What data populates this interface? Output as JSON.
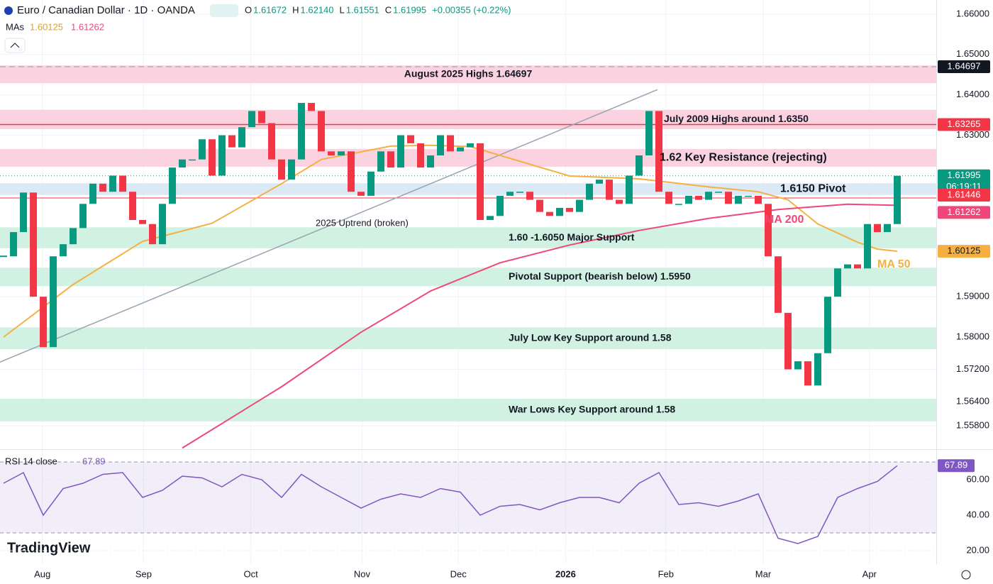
{
  "header": {
    "symbol": "Euro / Canadian Dollar · 1D · OANDA",
    "ohlc": [
      {
        "key": "O",
        "value": "1.61672"
      },
      {
        "key": "H",
        "value": "1.62140"
      },
      {
        "key": "L",
        "value": "1.61551"
      },
      {
        "key": "C",
        "value": "1.61995"
      }
    ],
    "change": "+0.00355 (+0.22%)",
    "mas_label": "MAs",
    "mas": [
      "1.60125",
      "1.61262"
    ],
    "logo": "TradingView"
  },
  "chart_data": {
    "type": "candlestick",
    "up_color": "#089981",
    "down_color": "#f23645",
    "closes": [
      1.6,
      1.606,
      1.6158,
      1.59,
      1.5775,
      1.6,
      1.603,
      1.607,
      1.613,
      1.618,
      1.616,
      1.62,
      1.616,
      1.609,
      1.608,
      1.603,
      1.613,
      1.622,
      1.624,
      1.624,
      1.629,
      1.62,
      1.63,
      1.627,
      1.632,
      1.636,
      1.633,
      1.624,
      1.619,
      1.624,
      1.638,
      1.636,
      1.626,
      1.625,
      1.626,
      1.616,
      1.615,
      1.621,
      1.626,
      1.622,
      1.63,
      1.628,
      1.622,
      1.625,
      1.63,
      1.626,
      1.627,
      1.628,
      1.609,
      1.61,
      1.615,
      1.616,
      1.616,
      1.614,
      1.611,
      1.61,
      1.612,
      1.611,
      1.614,
      1.618,
      1.619,
      1.614,
      1.613,
      1.62,
      1.625,
      1.636,
      1.616,
      1.613,
      1.613,
      1.615,
      1.614,
      1.616,
      1.616,
      1.613,
      1.615,
      1.615,
      1.613,
      1.6,
      1.586,
      1.572,
      1.574,
      1.568,
      1.576,
      1.59,
      1.597,
      1.598,
      1.597,
      1.608,
      1.606,
      1.608,
      1.61995
    ],
    "xlim": [
      -0.36,
      93.93
    ],
    "ylim": [
      1.5524,
      1.6635
    ],
    "xticks": [
      {
        "value": 3.9,
        "label": "Aug"
      },
      {
        "value": 14.1,
        "label": "Sep"
      },
      {
        "value": 24.9,
        "label": "Oct"
      },
      {
        "value": 36.1,
        "label": "Nov"
      },
      {
        "value": 45.8,
        "label": "Dec"
      },
      {
        "value": 56.6,
        "label": "2026"
      },
      {
        "value": 66.7,
        "label": "Feb"
      },
      {
        "value": 76.5,
        "label": "Mar"
      },
      {
        "value": 87.2,
        "label": "Apr"
      }
    ],
    "yticks": [
      {
        "value": 1.66,
        "label": "1.66000"
      },
      {
        "value": 1.65,
        "label": "1.65000"
      },
      {
        "value": 1.64,
        "label": "1.64000"
      },
      {
        "value": 1.63,
        "label": "1.63000"
      },
      {
        "value": 1.59,
        "label": "1.59000"
      },
      {
        "value": 1.58,
        "label": "1.58000"
      },
      {
        "value": 1.572,
        "label": "1.57200"
      },
      {
        "value": 1.564,
        "label": "1.56400"
      },
      {
        "value": 1.558,
        "label": "1.55800"
      }
    ],
    "grid": true,
    "mas": [
      {
        "name": "MA 50",
        "color": "#f5b041",
        "x": [
          0,
          7,
          14,
          21,
          28,
          32,
          39,
          43,
          47,
          50,
          57,
          64,
          71,
          76,
          79,
          82,
          86,
          88,
          90
        ],
        "values": [
          1.58,
          1.593,
          1.6037,
          1.6082,
          1.618,
          1.624,
          1.6273,
          1.6275,
          1.6272,
          1.625,
          1.6199,
          1.6192,
          1.6172,
          1.616,
          1.614,
          1.608,
          1.6035,
          1.6018,
          1.60125
        ]
      },
      {
        "name": "MA 200",
        "color": "#f0477a",
        "x": [
          18,
          28,
          36,
          43,
          50,
          57,
          64,
          71,
          78,
          85,
          90
        ],
        "values": [
          1.5525,
          1.5677,
          1.5812,
          1.5914,
          1.5984,
          1.6028,
          1.6064,
          1.6094,
          1.6116,
          1.6129,
          1.61262
        ]
      }
    ],
    "zones": [
      {
        "label": "August 2025 Highs 1.64697",
        "low": 1.6429,
        "high": 1.6473,
        "color": "#fbd3e0"
      },
      {
        "label": "July 2009 Highs around 1.6350",
        "low": 1.6315,
        "high": 1.6363,
        "color": "#fbd3e0"
      },
      {
        "label": "1.62 Key Resistance (rejecting)",
        "low": 1.6222,
        "high": 1.6266,
        "color": "#fbd3e0"
      },
      {
        "label": "1.6150 Pivot",
        "low": 1.6152,
        "high": 1.6181,
        "color": "#dbe9f5"
      },
      {
        "label": "1.60 -1.6050 Major Support",
        "low": 1.602,
        "high": 1.6072,
        "color": "#d1f2e3"
      },
      {
        "label": "Pivotal Support (bearish below) 1.5950",
        "low": 1.5926,
        "high": 1.5972,
        "color": "#d1f2e3"
      },
      {
        "label": "July Low Key Support around 1.58",
        "low": 1.577,
        "high": 1.5824,
        "color": "#d1f2e3"
      },
      {
        "label": "War Lows Key Support around 1.58",
        "low": 1.5591,
        "high": 1.5647,
        "color": "#d1f2e3"
      }
    ],
    "trendline": {
      "label": "2025 Uptrend (broken)",
      "x": [
        -0.36,
        65.86
      ],
      "values": [
        1.5738,
        1.6413
      ],
      "color": "#9aa3b1"
    },
    "price_labels": [
      {
        "value": 1.64697,
        "color": "#131722"
      },
      {
        "value": 1.63265,
        "color": "#f23645"
      },
      {
        "value": 1.61995,
        "color": "#089981",
        "timer": "06:19:11"
      },
      {
        "value": 1.61446,
        "color": "#f23645"
      },
      {
        "value": 1.61262,
        "color": "#f0477a"
      },
      {
        "value": 1.60125,
        "color": "#f5b041"
      }
    ],
    "rsi": {
      "title": "RSI 14 close",
      "last": 67.89,
      "color": "#7e57c2",
      "ylim": [
        12.4,
        76.4
      ],
      "levels": [
        70,
        30
      ],
      "yticks": [
        {
          "value": 60,
          "label": "60.00"
        },
        {
          "value": 40,
          "label": "40.00"
        },
        {
          "value": 20,
          "label": "20.00"
        }
      ],
      "x": [
        0,
        2,
        4,
        6,
        8,
        10,
        12,
        14,
        16,
        18,
        20,
        22,
        24,
        26,
        28,
        30,
        32,
        34,
        36,
        38,
        40,
        42,
        44,
        46,
        48,
        50,
        52,
        54,
        56,
        58,
        60,
        62,
        64,
        66,
        68,
        70,
        72,
        74,
        76,
        78,
        80,
        82,
        84,
        86,
        88,
        90
      ],
      "values": [
        58,
        64,
        40,
        55,
        58,
        63,
        64,
        50,
        54,
        62,
        61,
        56,
        63,
        60,
        50,
        63,
        56,
        50,
        44,
        49,
        52,
        50,
        55,
        53,
        40,
        45,
        46,
        43,
        47,
        50,
        50,
        47,
        58,
        64,
        46,
        47,
        45,
        48,
        52,
        27,
        24,
        28,
        50,
        55,
        59,
        67.89
      ]
    }
  }
}
